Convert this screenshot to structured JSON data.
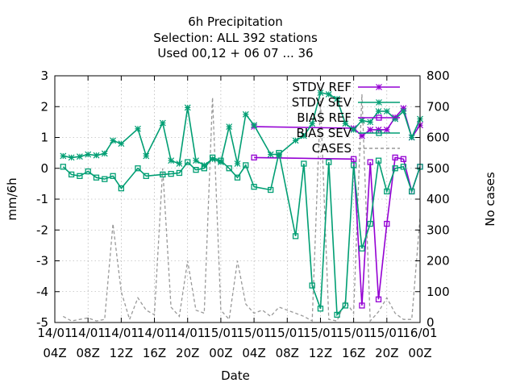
{
  "chart_data": {
    "type": "line",
    "title": [
      "6h Precipitation",
      "Selection: ALL    392 stations",
      "Used  00,12  + 06 07 ... 36"
    ],
    "xlabel": "Date",
    "ylabel": "mm/6h",
    "y2label": "No cases",
    "ylim": [
      -5,
      3
    ],
    "y2lim": [
      0,
      800
    ],
    "grid": true,
    "legend_position": "top-right",
    "x_tick_labels": [
      [
        "14/01",
        "04Z"
      ],
      [
        "14/01",
        "08Z"
      ],
      [
        "14/01",
        "12Z"
      ],
      [
        "14/01",
        "16Z"
      ],
      [
        "14/01",
        "20Z"
      ],
      [
        "15/01",
        "00Z"
      ],
      [
        "15/01",
        "04Z"
      ],
      [
        "15/01",
        "08Z"
      ],
      [
        "15/01",
        "12Z"
      ],
      [
        "15/01",
        "16Z"
      ],
      [
        "15/01",
        "20Z"
      ],
      [
        "16/01",
        "00Z"
      ]
    ],
    "y_ticks": [
      -5,
      -4,
      -3,
      -2,
      -1,
      0,
      1,
      2,
      3
    ],
    "y2_ticks": [
      0,
      100,
      200,
      300,
      400,
      500,
      600,
      700,
      800
    ],
    "x_range_hours": [
      0,
      44
    ],
    "series": [
      {
        "name": "STDV REF",
        "axis": "y",
        "color": "#9400d3",
        "marker": "star",
        "x": [
          24,
          36,
          37,
          38,
          39,
          40,
          41,
          42,
          43,
          44
        ],
        "y": [
          1.35,
          1.3,
          1.05,
          1.25,
          1.25,
          1.25,
          1.65,
          1.95,
          1.0,
          1.4
        ]
      },
      {
        "name": "STDV SEV",
        "axis": "y",
        "color": "#009e73",
        "marker": "star",
        "x": [
          1,
          2,
          3,
          4,
          5,
          6,
          7,
          8,
          10,
          11,
          13,
          14,
          15,
          16,
          17,
          18,
          19,
          20,
          21,
          22,
          23,
          24,
          26,
          27,
          29,
          30,
          31,
          32,
          33,
          34,
          35,
          36,
          37,
          38,
          39,
          40,
          41,
          42,
          43,
          44
        ],
        "y": [
          0.4,
          0.35,
          0.38,
          0.45,
          0.42,
          0.48,
          0.9,
          0.8,
          1.28,
          0.4,
          1.47,
          0.25,
          0.15,
          1.97,
          0.25,
          0.1,
          0.3,
          0.2,
          1.35,
          0.15,
          1.75,
          1.4,
          0.45,
          0.45,
          0.9,
          1.05,
          1.45,
          2.45,
          2.4,
          2.25,
          1.45,
          1.25,
          1.55,
          1.5,
          1.85,
          1.85,
          1.6,
          1.85,
          1.0,
          1.6
        ]
      },
      {
        "name": "BIAS REF",
        "axis": "y",
        "color": "#9400d3",
        "marker": "square",
        "x": [
          24,
          36,
          37,
          38,
          39,
          40,
          41,
          42,
          43,
          44
        ],
        "y": [
          0.35,
          0.3,
          -4.45,
          0.2,
          -4.25,
          -1.8,
          0.35,
          0.3,
          -0.75,
          0.05
        ]
      },
      {
        "name": "BIAS SEV",
        "axis": "y",
        "color": "#009e73",
        "marker": "square",
        "x": [
          1,
          2,
          3,
          4,
          5,
          6,
          7,
          8,
          10,
          11,
          13,
          14,
          15,
          16,
          17,
          18,
          19,
          20,
          21,
          22,
          23,
          24,
          26,
          27,
          29,
          30,
          31,
          32,
          33,
          34,
          35,
          36,
          37,
          38,
          39,
          40,
          41,
          42,
          43,
          44
        ],
        "y": [
          0.05,
          -0.2,
          -0.25,
          -0.1,
          -0.3,
          -0.35,
          -0.25,
          -0.65,
          0.0,
          -0.25,
          -0.2,
          -0.18,
          -0.15,
          0.2,
          -0.05,
          0.0,
          0.35,
          0.25,
          0.0,
          -0.3,
          0.1,
          -0.6,
          -0.7,
          0.5,
          -2.2,
          0.15,
          -3.8,
          -4.55,
          0.2,
          -4.75,
          -4.45,
          0.1,
          -2.6,
          -1.8,
          0.25,
          -0.75,
          0.0,
          0.05,
          -0.75,
          0.05
        ]
      },
      {
        "name": "CASES",
        "axis": "y2",
        "color": "#999999",
        "marker": "none",
        "dashed": true,
        "x": [
          1,
          2,
          3,
          4,
          5,
          6,
          7,
          8,
          9,
          10,
          11,
          12,
          13,
          14,
          15,
          16,
          17,
          18,
          19,
          20,
          21,
          22,
          23,
          24,
          25,
          26,
          27,
          28,
          29,
          30,
          31,
          32,
          33,
          34,
          35,
          36,
          37,
          38,
          39,
          40,
          41,
          42,
          43,
          44
        ],
        "y": [
          20,
          5,
          10,
          15,
          5,
          10,
          320,
          100,
          10,
          80,
          40,
          25,
          500,
          50,
          20,
          200,
          40,
          30,
          730,
          40,
          10,
          200,
          60,
          30,
          40,
          20,
          50,
          40,
          30,
          20,
          5,
          720,
          10,
          5,
          70,
          30,
          740,
          5,
          35,
          80,
          30,
          10,
          10,
          340
        ]
      }
    ]
  }
}
